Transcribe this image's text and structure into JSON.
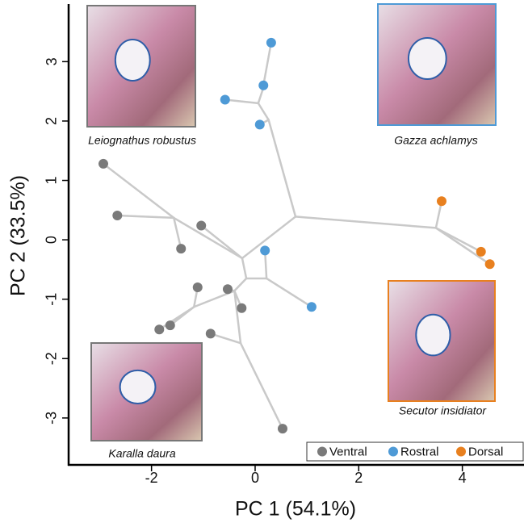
{
  "chart_data": {
    "type": "scatter",
    "x_label": "PC 1 (54.1%)",
    "y_label": "PC 2 (33.5%)",
    "xlim": [
      -3.6,
      5.19
    ],
    "ylim": [
      -3.79,
      3.97
    ],
    "xticks": [
      -2,
      0,
      2,
      4
    ],
    "yticks": [
      -3,
      -2,
      -1,
      0,
      1,
      2,
      3
    ],
    "legend": "lower right",
    "series": [
      {
        "name": "Ventral",
        "color": "#7a7a7a",
        "x": [
          -2.93,
          -2.66,
          -1.04,
          -1.43,
          -1.11,
          -0.53,
          -0.26,
          -1.64,
          -1.85,
          -0.86,
          0.53
        ],
        "values": [
          1.28,
          0.41,
          0.24,
          -0.15,
          -0.8,
          -0.83,
          -1.15,
          -1.44,
          -1.51,
          -1.58,
          -3.18
        ]
      },
      {
        "name": "Rostral",
        "color": "#4e9ad6",
        "x": [
          0.31,
          0.16,
          -0.58,
          0.09,
          0.19,
          1.09
        ],
        "values": [
          3.32,
          2.6,
          2.36,
          1.94,
          -0.18,
          -1.13
        ]
      },
      {
        "name": "Dorsal",
        "color": "#e8801f",
        "x": [
          3.6,
          4.36,
          4.53
        ],
        "values": [
          0.65,
          -0.2,
          -0.41
        ]
      }
    ],
    "tree": {
      "color": "#c9c9c9",
      "segments": [
        [
          0.78,
          0.39,
          3.49,
          0.2
        ],
        [
          3.49,
          0.2,
          3.6,
          0.65
        ],
        [
          3.49,
          0.2,
          4.36,
          -0.2
        ],
        [
          3.49,
          0.2,
          4.53,
          -0.41
        ],
        [
          0.78,
          0.39,
          0.26,
          2.02
        ],
        [
          0.26,
          2.02,
          0.09,
          1.94
        ],
        [
          0.26,
          2.02,
          0.06,
          2.3
        ],
        [
          0.06,
          2.3,
          -0.58,
          2.36
        ],
        [
          0.06,
          2.3,
          0.14,
          2.51
        ],
        [
          0.14,
          2.51,
          0.16,
          2.6
        ],
        [
          0.14,
          2.51,
          0.31,
          3.32
        ],
        [
          0.78,
          0.39,
          -0.25,
          -0.31
        ],
        [
          -0.25,
          -0.31,
          -1.57,
          0.37
        ],
        [
          -1.57,
          0.37,
          -2.93,
          1.28
        ],
        [
          -1.57,
          0.37,
          -1.43,
          -0.15
        ],
        [
          -1.57,
          0.37,
          -2.66,
          0.41
        ],
        [
          -0.25,
          -0.31,
          -1.04,
          0.24
        ],
        [
          -0.25,
          -0.31,
          -0.17,
          -0.65
        ],
        [
          -0.17,
          -0.65,
          0.22,
          -0.65
        ],
        [
          0.22,
          -0.65,
          0.19,
          -0.18
        ],
        [
          0.22,
          -0.65,
          1.09,
          -1.13
        ],
        [
          -0.17,
          -0.65,
          -0.4,
          -0.86
        ],
        [
          -0.4,
          -0.86,
          -0.53,
          -0.83
        ],
        [
          -0.4,
          -0.86,
          -0.26,
          -1.15
        ],
        [
          -0.4,
          -0.86,
          -1.18,
          -1.13
        ],
        [
          -1.18,
          -1.13,
          -1.11,
          -0.8
        ],
        [
          -1.18,
          -1.13,
          -1.64,
          -1.44
        ],
        [
          -1.18,
          -1.13,
          -1.85,
          -1.51
        ],
        [
          -0.4,
          -0.86,
          -0.28,
          -1.74
        ],
        [
          -0.28,
          -1.74,
          -0.86,
          -1.58
        ],
        [
          -0.28,
          -1.74,
          0.53,
          -3.18
        ]
      ]
    },
    "annotations": [
      {
        "text": "Leiognathus robustus",
        "frame_color": "#777777"
      },
      {
        "text": "Gazza achlamys",
        "frame_color": "#4e9ad6"
      },
      {
        "text": "Secutor insidiator",
        "frame_color": "#e8801f"
      },
      {
        "text": "Karalla daura",
        "frame_color": "#777777"
      }
    ]
  }
}
